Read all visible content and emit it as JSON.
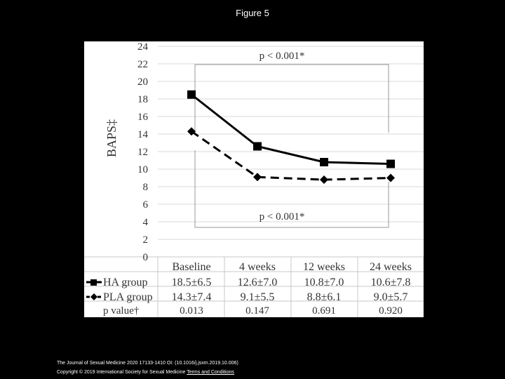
{
  "figure_title": "Figure 5",
  "chart_data": {
    "type": "line",
    "ylabel": "BAPS‡",
    "ylim": [
      0,
      24
    ],
    "yticks": [
      0,
      2,
      4,
      6,
      8,
      10,
      12,
      14,
      16,
      18,
      20,
      22,
      24
    ],
    "categories": [
      "Baseline",
      "4 weeks",
      "12 weeks",
      "24 weeks"
    ],
    "series": [
      {
        "name": "HA group",
        "values": [
          18.5,
          12.6,
          10.8,
          10.6
        ],
        "table": [
          "18.5±6.5",
          "12.6±7.0",
          "10.8±7.0",
          "10.6±7.8"
        ],
        "marker": "square",
        "line": "solid"
      },
      {
        "name": "PLA group",
        "values": [
          14.3,
          9.1,
          8.8,
          9.0
        ],
        "table": [
          "14.3±7.4",
          "9.1±5.5",
          "8.8±6.1",
          "9.0±5.7"
        ],
        "marker": "diamond",
        "line": "dashed"
      }
    ],
    "pvalue_row": {
      "label": "p value†",
      "values": [
        "0.013",
        "0.147",
        "0.691",
        "0.920"
      ]
    },
    "annotations": {
      "top": "p < 0.001*",
      "bottom": "p < 0.001*"
    }
  },
  "footer": {
    "citation": "The Journal of Sexual Medicine 2020 17133-1410 OI: (10.1016/j.jsxm.2019.10.006)",
    "copyright": "Copyright © 2019 International Society for Sexual Medicine",
    "terms_link": "Terms and Conditions"
  }
}
